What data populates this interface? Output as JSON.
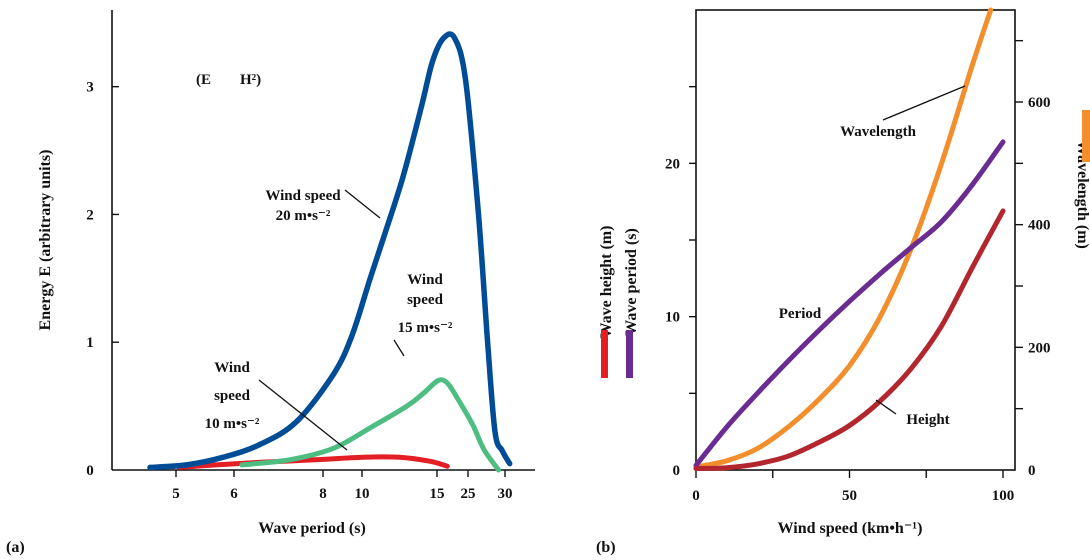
{
  "chart_data": [
    {
      "type": "line",
      "panel_label": "(a)",
      "xlabel": "Wave period (s)",
      "ylabel": "Energy E (arbitrary units)",
      "x_ticks": [
        "5",
        "6",
        "8",
        "10",
        "15",
        "25",
        "30"
      ],
      "y_ticks": [
        "0",
        "1",
        "2",
        "3"
      ],
      "ylim": [
        0,
        3.6
      ],
      "relation_label": "(E",
      "relation_label_b": "H²)",
      "series": [
        {
          "annotation": [
            "Wind",
            "speed",
            "10 m•s⁻²"
          ],
          "color": "#e31e24",
          "points": [
            [
              0.08,
              0.02
            ],
            [
              0.18,
              0.04
            ],
            [
              0.3,
              0.06
            ],
            [
              0.45,
              0.08
            ],
            [
              0.58,
              0.1
            ],
            [
              0.68,
              0.1
            ],
            [
              0.76,
              0.07
            ],
            [
              0.81,
              0.03
            ]
          ]
        },
        {
          "annotation": [
            "Wind",
            "speed",
            "15 m•s⁻²"
          ],
          "color": "#4dbd82",
          "points": [
            [
              0.25,
              0.04
            ],
            [
              0.38,
              0.08
            ],
            [
              0.5,
              0.17
            ],
            [
              0.6,
              0.33
            ],
            [
              0.7,
              0.5
            ],
            [
              0.745,
              0.6
            ],
            [
              0.785,
              0.7
            ],
            [
              0.81,
              0.68
            ],
            [
              0.84,
              0.55
            ],
            [
              0.88,
              0.35
            ],
            [
              0.91,
              0.16
            ],
            [
              0.95,
              0.0
            ]
          ]
        },
        {
          "annotation": [
            "Wind speed",
            "20 m•s⁻²"
          ],
          "color": "#004c97",
          "points": [
            [
              0.0,
              0.02
            ],
            [
              0.1,
              0.04
            ],
            [
              0.2,
              0.1
            ],
            [
              0.3,
              0.2
            ],
            [
              0.4,
              0.38
            ],
            [
              0.5,
              0.75
            ],
            [
              0.55,
              1.05
            ],
            [
              0.6,
              1.5
            ],
            [
              0.64,
              1.85
            ],
            [
              0.69,
              2.3
            ],
            [
              0.74,
              2.85
            ],
            [
              0.77,
              3.2
            ],
            [
              0.8,
              3.38
            ],
            [
              0.83,
              3.38
            ],
            [
              0.86,
              3.05
            ],
            [
              0.895,
              2.0
            ],
            [
              0.92,
              1.0
            ],
            [
              0.94,
              0.3
            ],
            [
              0.96,
              0.15
            ],
            [
              0.98,
              0.05
            ]
          ]
        }
      ]
    },
    {
      "type": "line",
      "panel_label": "(b)",
      "xlabel": "Wind speed (km•h⁻¹)",
      "ylabel_left_1": "Wave height (m)",
      "ylabel_left_2": "Wave period (s)",
      "ylabel_right": "Wavelength (m)",
      "xlim": [
        0,
        100
      ],
      "x_ticks": [
        "0",
        "50",
        "100"
      ],
      "y_ticks_left": [
        "0",
        "10",
        "20"
      ],
      "ylim_left": [
        0,
        30
      ],
      "y_ticks_right": [
        "0",
        "200",
        "400",
        "600"
      ],
      "ylim_right": [
        0,
        750
      ],
      "series": [
        {
          "name": "Wavelength",
          "color": "#f28e2b",
          "axis": "right",
          "x": [
            0,
            10,
            20,
            30,
            40,
            50,
            60,
            70,
            80,
            90,
            96
          ],
          "y": [
            5,
            15,
            35,
            70,
            115,
            170,
            250,
            360,
            500,
            660,
            750
          ]
        },
        {
          "name": "Period",
          "color": "#6a2c91",
          "axis": "left",
          "x": [
            0,
            10,
            20,
            30,
            40,
            50,
            60,
            70,
            80,
            90,
            100
          ],
          "y": [
            0.3,
            2.8,
            5.0,
            7.1,
            9.1,
            11.0,
            12.8,
            14.5,
            16.2,
            18.6,
            21.4
          ]
        },
        {
          "name": "Height",
          "color": "#b3262e",
          "axis": "left",
          "x": [
            0,
            10,
            20,
            30,
            40,
            50,
            60,
            70,
            80,
            90,
            100
          ],
          "y": [
            0.1,
            0.15,
            0.4,
            0.9,
            1.8,
            2.9,
            4.5,
            6.6,
            9.4,
            13.2,
            16.9
          ]
        }
      ]
    }
  ]
}
